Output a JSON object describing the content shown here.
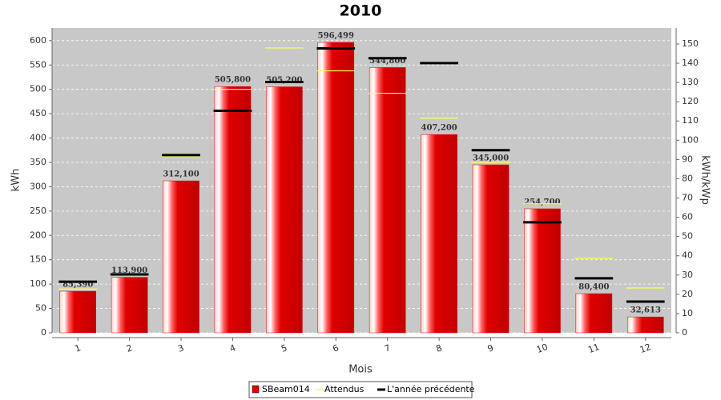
{
  "chart_data": {
    "type": "bar",
    "title": "2010",
    "x_label": "Mois",
    "y_label": "kWh",
    "y2_label": "kWh/kWp",
    "categories": [
      "1",
      "2",
      "3",
      "4",
      "5",
      "6",
      "7",
      "8",
      "9",
      "10",
      "11",
      "12"
    ],
    "series": [
      {
        "name": "SBeam014",
        "color": "#e00000",
        "mark": "bar",
        "values": [
          85.39,
          113.9,
          312.1,
          505.8,
          505.2,
          596.499,
          544.8,
          407.2,
          345,
          254.7,
          80.4,
          32.613
        ],
        "value_labels": [
          "85,390",
          "113,900",
          "312,100",
          "505,800",
          "505,200",
          "596,499",
          "544,800",
          "407,200",
          "345,000",
          "254,700",
          "80,400",
          "32,613"
        ]
      },
      {
        "name": "Attendus",
        "color": "#ffff55",
        "mark": "level",
        "values": [
          90,
          120,
          362,
          500,
          585,
          538,
          492,
          441,
          350,
          265,
          153,
          92
        ]
      },
      {
        "name": "L'année précédente",
        "color": "#000000",
        "mark": "level",
        "values": [
          105,
          120,
          365,
          456,
          515,
          584,
          564,
          554,
          375,
          227,
          112,
          64
        ]
      }
    ],
    "ylim": [
      0,
      626
    ],
    "yticks": [
      0,
      50,
      100,
      150,
      200,
      250,
      300,
      350,
      400,
      450,
      500,
      550,
      600
    ],
    "y2lim": [
      0,
      158.3
    ],
    "y2ticks": [
      0,
      10,
      20,
      30,
      40,
      50,
      60,
      70,
      80,
      90,
      100,
      110,
      120,
      130,
      140,
      150
    ],
    "grid": true,
    "legend": "bottom"
  }
}
